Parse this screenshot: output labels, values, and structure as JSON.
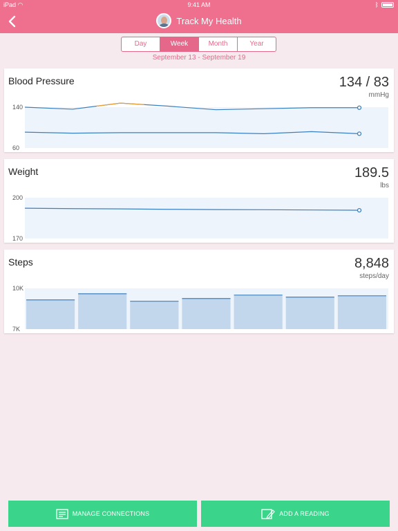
{
  "status_bar": {
    "carrier": "iPad",
    "time": "9:41 AM"
  },
  "nav": {
    "title": "Track My Health"
  },
  "segments": [
    {
      "label": "Day",
      "active": false
    },
    {
      "label": "Week",
      "active": true
    },
    {
      "label": "Month",
      "active": false
    },
    {
      "label": "Year",
      "active": false
    }
  ],
  "date_range": "September 13 - September 19",
  "cards": {
    "blood_pressure": {
      "title": "Blood Pressure",
      "value": "134 / 83",
      "unit": "mmHg"
    },
    "weight": {
      "title": "Weight",
      "value": "189.5",
      "unit": "lbs"
    },
    "steps": {
      "title": "Steps",
      "value": "8,848",
      "unit": "steps/day"
    }
  },
  "buttons": {
    "manage": "MANAGE CONNECTIONS",
    "add": "ADD A READING"
  },
  "colors": {
    "brand": "#ef6f8e",
    "accent": "#e5688a",
    "line": "#3a7fc0",
    "highlight": "#f0a030",
    "action": "#3ad48a"
  },
  "chart_data": [
    {
      "type": "line",
      "title": "Blood Pressure",
      "ylim": [
        60,
        140
      ],
      "ytick_labels": [
        "140",
        "60"
      ],
      "series": [
        {
          "values": [
            140,
            136,
            148,
            142,
            135,
            137,
            139,
            139
          ],
          "highlight": [
            [
              2,
              3,
              "#f0a030"
            ]
          ]
        },
        {
          "values": [
            91,
            89,
            90,
            90,
            90,
            88,
            92,
            88
          ]
        }
      ]
    },
    {
      "type": "line",
      "title": "Weight",
      "ylim": [
        170,
        200
      ],
      "ytick_labels": [
        "200",
        "170"
      ],
      "series": [
        {
          "values": [
            192.3,
            192.0,
            191.8,
            191.5,
            191.3,
            191.2,
            191.0,
            190.8
          ]
        }
      ]
    },
    {
      "type": "bar",
      "title": "Steps",
      "ylim": [
        4000,
        10000
      ],
      "ytick_labels": [
        "10K",
        "7K"
      ],
      "values": [
        8300,
        9200,
        8100,
        8500,
        9000,
        8700,
        8900
      ]
    }
  ]
}
